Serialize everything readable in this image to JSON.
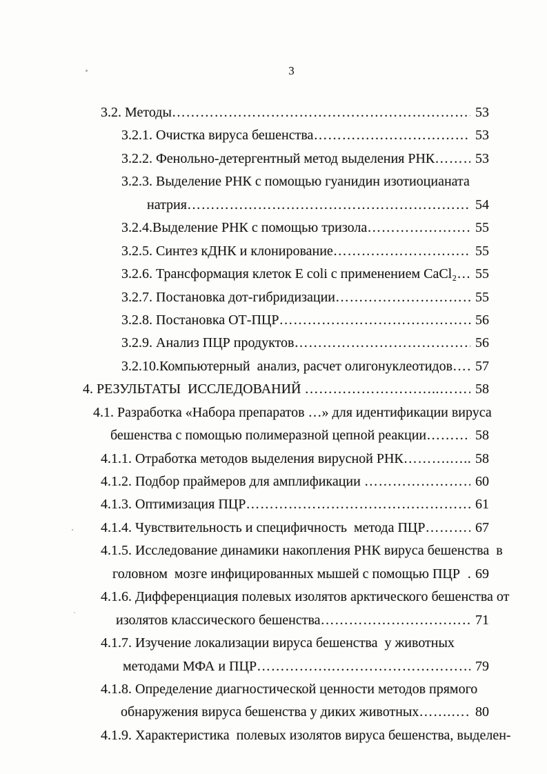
{
  "page": {
    "number": "3"
  },
  "toc": {
    "entries": [
      {
        "indent": 26,
        "text": "3.2. Методы",
        "dots": "………………………………………………………………………………………………",
        "page": "53"
      },
      {
        "indent": 56,
        "text": "3.2.1. Очистка вируса бешенства",
        "dots": "………………………………………………………………………………………………",
        "page": "53"
      },
      {
        "indent": 56,
        "text": "3.2.2. Фенольно-детергентный метод выделения РНК",
        "dots": "………………………………………………………………………………………………",
        "page": "53"
      },
      {
        "indent": 56,
        "text": "3.2.3. Выделение РНК с помощью гуанидин изотиоцианата",
        "dots": "",
        "page": ""
      },
      {
        "indent": 93,
        "text": "натрия",
        "dots": "………………………………………………………………………………………………",
        "page": "54"
      },
      {
        "indent": 56,
        "text": "3.2.4.Выделение РНК с помощью тризола",
        "dots": "………………………………………………………………………………………………",
        "page": "55"
      },
      {
        "indent": 56,
        "text": "3.2.5. Синтез кДНК и клонирование",
        "dots": "………………………………………………………………………………………………",
        "page": "55"
      },
      {
        "indent": 56,
        "text": "3.2.6. Трансформация клеток E coli с применением CaCl₂",
        "dots": "………………………………………………………………………………………………",
        "page": "55"
      },
      {
        "indent": 56,
        "text": "3.2.7. Постановка дот-гибридизации",
        "dots": "………………………………………………………………………………………………",
        "page": "55"
      },
      {
        "indent": 56,
        "text": "3.2.8. Постановка ОТ-ПЦР",
        "dots": "………………………………………………………………………………………………",
        "page": "56"
      },
      {
        "indent": 56,
        "text": "3.2.9. Анализ ПЦР продуктов",
        "dots": "………………………………………………………………………………………………",
        "page": "56"
      },
      {
        "indent": 56,
        "text": "3.2.10.Компьютерный  анализ, расчет олигонуклеотидов",
        "dots": "………………………………………………………………………………………………",
        "page": "57"
      },
      {
        "indent": 0,
        "text": "4. РЕЗУЛЬТАТЫ  ИССЛЕДОВАНИЙ ",
        "dots": "………………………..……………………………………………",
        "page": "58"
      },
      {
        "indent": 15,
        "text": "4.1. Разработка «Набора препаратов …» для идентификации вируса",
        "dots": "",
        "page": ""
      },
      {
        "indent": 40,
        "text": "бешенства с помощью полимеразной цепной реакции",
        "dots": "………………………………………………………………………………………………",
        "page": "58"
      },
      {
        "indent": 26,
        "text": "4.1.1. Отработка методов выделения вирусной РНК",
        "dots": "……….…...…..………………………………………………………",
        "page": "58"
      },
      {
        "indent": 26,
        "text": "4.1.2. Подбор праймеров для амплификации ",
        "dots": "……………………..…..…………………………………………………",
        "page": "60"
      },
      {
        "indent": 26,
        "text": "4.1.3. Оптимизация ПЦР",
        "dots": "………………………………………………………………………………………………",
        "page": "61"
      },
      {
        "indent": 26,
        "text": "4.1.4. Чувствительность и специфичность  метода ПЦР",
        "dots": "………………………………………………………………………………………………",
        "page": "67"
      },
      {
        "indent": 26,
        "text": "4.1.5. Исследование динамики накопления РНК вируса бешенства  в",
        "dots": "",
        "page": ""
      },
      {
        "indent": 43,
        "text": "головном  мозге инфицированных мышей с помощью ПЦР  ",
        "dots": "……………………………………………………",
        "page": "69"
      },
      {
        "indent": 26,
        "text": "4.1.6. Дифференциация полевых изолятов арктического бешенства от",
        "dots": "",
        "page": ""
      },
      {
        "indent": 48,
        "text": "изолятов классического бешенства",
        "dots": "………………………………………………………………………………………………",
        "page": "71"
      },
      {
        "indent": 26,
        "text": "4.1.7. Изучение локализации вируса бешенства  у животных",
        "dots": "",
        "page": ""
      },
      {
        "indent": 58,
        "text": "методами МФА и ПЦР",
        "dots": "…………….………………………………..………………………………………",
        "page": "79"
      },
      {
        "indent": 26,
        "text": "4.1.8. Определение диагностической ценности методов прямого",
        "dots": "",
        "page": ""
      },
      {
        "indent": 55,
        "text": "обнаружения вируса бешенства у диких животных",
        "dots": "…….………..……………………………………………………",
        "page": "80"
      },
      {
        "indent": 26,
        "text": "4.1.9. Характеристика  полевых изолятов вируса бешенства, выделен-",
        "dots": "",
        "page": ""
      }
    ]
  }
}
